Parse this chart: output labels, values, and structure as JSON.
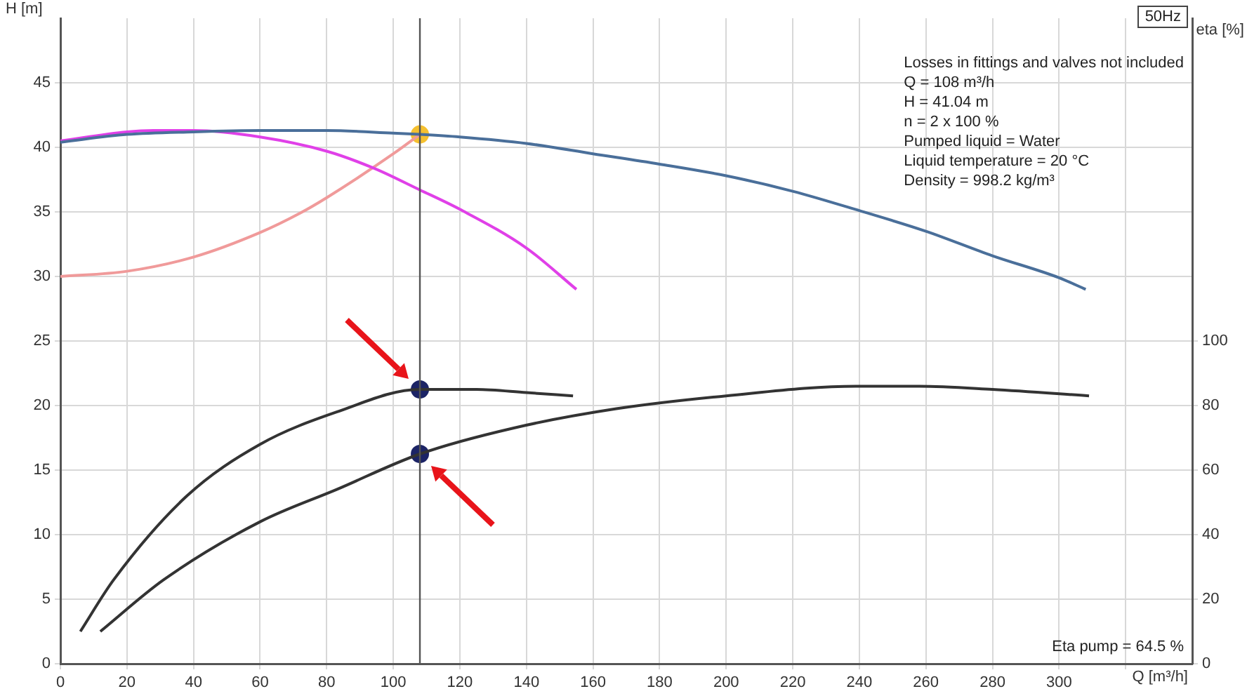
{
  "chart_data": {
    "type": "line",
    "title": "50Hz",
    "xlabel": "Q [m³/h]",
    "ylabel": "H [m]",
    "y2label": "eta [%]",
    "annotations": [
      "Losses in fittings and valves not included",
      "Q = 108 m³/h",
      "H = 41.04 m",
      "n = 2 x 100 %",
      "Pumped liquid = Water",
      "Liquid temperature = 20 °C",
      "Density = 998.2 kg/m³",
      "Eta pump = 64.5 %"
    ],
    "xlim": [
      0,
      340
    ],
    "xticks": [
      0,
      20,
      40,
      60,
      80,
      100,
      120,
      140,
      160,
      180,
      200,
      220,
      240,
      260,
      280,
      300,
      {
        "value": 320,
        "label": null
      }
    ],
    "ylim": [
      0,
      50
    ],
    "yticks": [
      0,
      5,
      10,
      15,
      20,
      25,
      30,
      35,
      40,
      45
    ],
    "y2lim": [
      0,
      200
    ],
    "y2ticks": [
      0,
      20,
      40,
      60,
      80,
      100
    ],
    "grid": true,
    "legend": false,
    "ref_lines": [
      {
        "axis": "x",
        "value": 108,
        "label": null,
        "color": "#555555"
      }
    ],
    "series": [
      {
        "type": "line",
        "color": "#4a6f9a",
        "x": [
          0,
          20,
          40,
          60,
          80,
          100,
          108,
          120,
          140,
          160,
          180,
          200,
          220,
          240,
          260,
          280,
          300,
          308
        ],
        "values": [
          40.4,
          41.0,
          41.2,
          41.3,
          41.3,
          41.1,
          41.0,
          40.8,
          40.3,
          39.5,
          38.7,
          37.8,
          36.6,
          35.1,
          33.5,
          31.6,
          29.9,
          29.0
        ]
      },
      {
        "type": "line",
        "color": "#e040e8",
        "x": [
          0,
          20,
          28,
          40,
          60,
          80,
          94,
          108,
          120,
          140,
          155
        ],
        "values": [
          40.5,
          41.2,
          41.3,
          41.3,
          40.8,
          39.7,
          38.4,
          36.7,
          35.2,
          32.2,
          29.0
        ]
      },
      {
        "type": "line",
        "color": "#f09a9a",
        "x": [
          0,
          20,
          40,
          60,
          72,
          80,
          100,
          108
        ],
        "values": [
          30.0,
          30.4,
          31.5,
          33.4,
          34.9,
          36.1,
          39.5,
          41.0
        ]
      },
      {
        "type": "line",
        "color": "#333333",
        "axis": "y2",
        "x": [
          6,
          16,
          38,
          60,
          83,
          108,
          125,
          140,
          154
        ],
        "values": [
          10,
          26,
          52,
          68,
          78,
          85,
          85,
          84,
          83
        ]
      },
      {
        "type": "line",
        "color": "#333333",
        "axis": "y2",
        "x": [
          12,
          31,
          60,
          83,
          108,
          136,
          167,
          200,
          239,
          258,
          280,
          309
        ],
        "values": [
          10,
          26,
          44,
          54,
          65,
          73,
          79,
          83,
          86,
          86,
          85,
          83
        ]
      },
      {
        "type": "scatter",
        "color": "#f5c030",
        "x": [
          108
        ],
        "values": [
          41.0
        ]
      },
      {
        "type": "scatter",
        "color": "#1c2466",
        "axis": "y2",
        "x": [
          108,
          108
        ],
        "values": [
          85,
          65
        ]
      }
    ]
  }
}
